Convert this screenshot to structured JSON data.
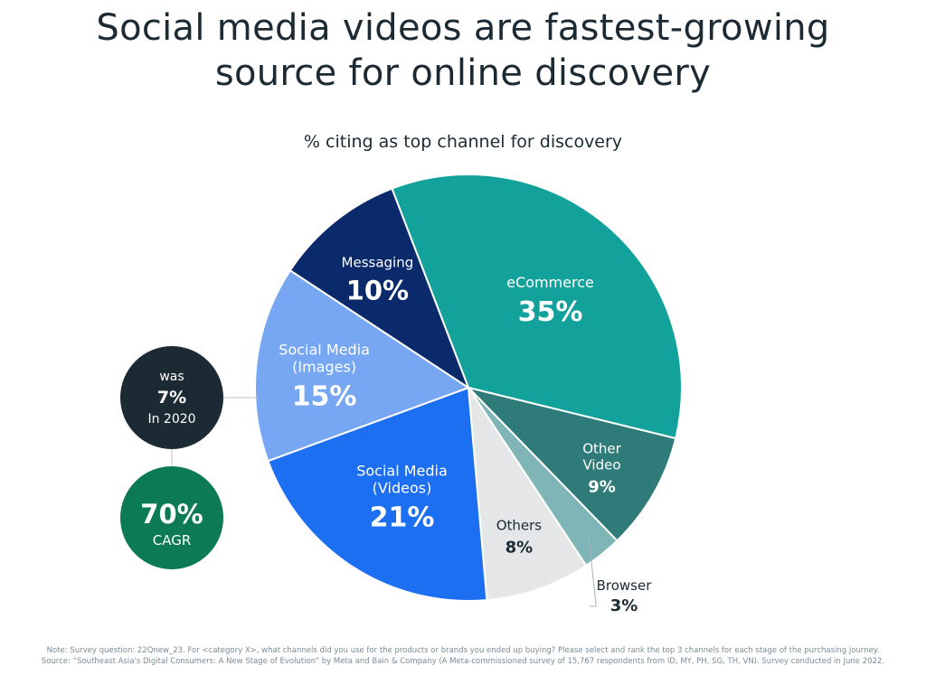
{
  "title_line1": "Social media videos are fastest-growing",
  "title_line2": "source for online discovery",
  "subtitle": "% citing as top channel for discovery",
  "chart_data": {
    "type": "pie",
    "title": "Social media videos are fastest-growing source for online discovery",
    "subtitle": "% citing as top channel for discovery",
    "unit": "%",
    "slices": [
      {
        "label_lines": [
          "eCommerce"
        ],
        "value": 35,
        "value_label": "35%",
        "color": "#13a29b",
        "text_color": "#ffffff"
      },
      {
        "label_lines": [
          "Other",
          "Video"
        ],
        "value": 9,
        "value_label": "9%",
        "color": "#2f7b7a",
        "text_color": "#ffffff"
      },
      {
        "label_lines": [
          "Browser"
        ],
        "value": 3,
        "value_label": "3%",
        "color": "#7fb5b6",
        "text_color": "#1c2b33",
        "callout": true
      },
      {
        "label_lines": [
          "Others"
        ],
        "value": 8,
        "value_label": "8%",
        "color": "#e4e6e8",
        "text_color": "#1c2b33"
      },
      {
        "label_lines": [
          "Social Media",
          "(Videos)"
        ],
        "value": 21,
        "value_label": "21%",
        "color": "#1d6ff2",
        "text_color": "#ffffff"
      },
      {
        "label_lines": [
          "Social Media",
          "(Images)"
        ],
        "value": 15,
        "value_label": "15%",
        "color": "#77a7f2",
        "text_color": "#ffffff"
      },
      {
        "label_lines": [
          "Messaging"
        ],
        "value": 10,
        "value_label": "10%",
        "color": "#0b2a6b",
        "text_color": "#ffffff"
      }
    ],
    "annotations": {
      "previous": {
        "line1": "was",
        "line2": "7%",
        "line3": "In 2020",
        "color": "#1c2b33"
      },
      "growth": {
        "line1": "70%",
        "line2": "CAGR",
        "color": "#0b7a55"
      }
    }
  },
  "note": "Note: Survey question: 22Qnew_23. For <category X>, what channels did you use for the products or brands you ended up buying? Please select and rank the top 3 channels for each stage of the purchasing journey. Source: “Southeast Asia's Digital Consumers: A New Stage of Evolution” by Meta and Bain & Company (A Meta-commissioned survey of 15,767 respondents from ID, MY, PH, SG, TH, VN). Survey conducted in June 2022."
}
